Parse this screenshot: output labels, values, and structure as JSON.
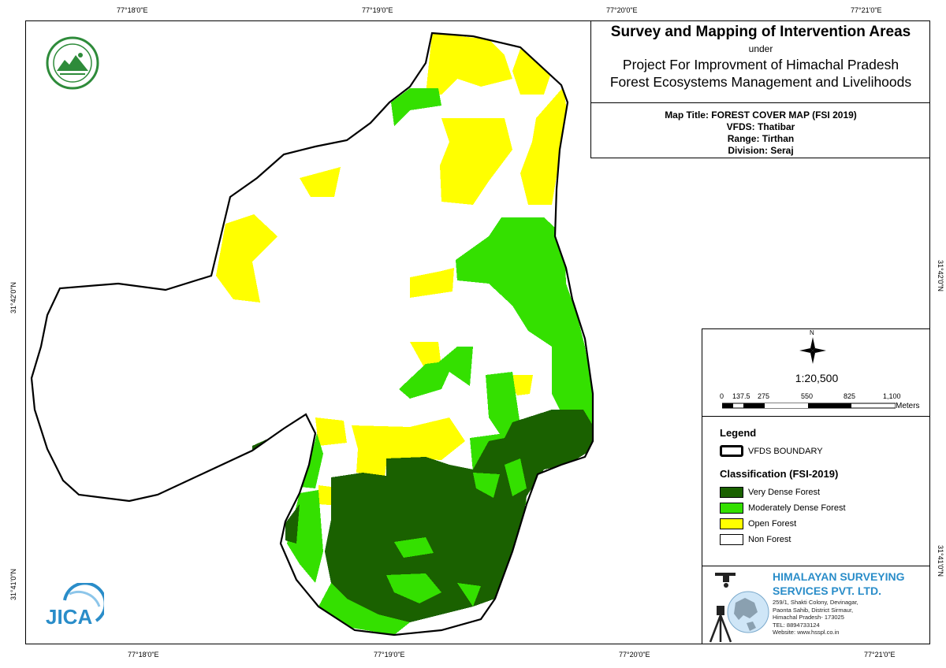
{
  "coords": {
    "top": [
      "77°18'0\"E",
      "77°19'0\"E",
      "77°20'0\"E",
      "77°21'0\"E"
    ],
    "bottom": [
      "77°18'0\"E",
      "77°19'0\"E",
      "77°20'0\"E",
      "77°21'0\"E"
    ],
    "left": [
      "31°42'0\"N",
      "31°41'0\"N"
    ],
    "right": [
      "31°42'0\"N",
      "31°41'0\"N"
    ]
  },
  "title": {
    "main": "Survey and Mapping of Intervention Areas",
    "under": "under",
    "project_line1": "Project For Improvment of Himachal Pradesh",
    "project_line2": "Forest Ecosystems Management and Livelihoods",
    "map_title": "Map Title: FOREST COVER MAP (FSI 2019)",
    "vfds": "VFDS: Thatibar",
    "range": "Range: Tirthan",
    "division": "Division: Seraj"
  },
  "north_label": "N",
  "scale": {
    "ratio": "1:20,500",
    "ticks": [
      "0",
      "137.5",
      "275",
      "550",
      "825",
      "1,100"
    ],
    "unit": "Meters"
  },
  "legend": {
    "heading": "Legend",
    "boundary": "VFDS BOUNDARY",
    "class_heading": "Classification (FSI-2019)",
    "items": [
      {
        "label": "Very Dense Forest",
        "color": "#1a6100"
      },
      {
        "label": "Moderately Dense Forest",
        "color": "#34e000"
      },
      {
        "label": "Open Forest",
        "color": "#ffff00"
      },
      {
        "label": "Non Forest",
        "color": "#ffffff"
      }
    ]
  },
  "company": {
    "name_line1": "HIMALAYAN SURVEYING",
    "name_line2": "SERVICES PVT. LTD.",
    "address": [
      "259/1, Shakti Colony, Devinagar,",
      "Paonta Sahib, District Sirmaur,",
      "Himachal Pradesh- 173025",
      "TEL: 8894733124",
      "Website: www.hsspl.co.in"
    ]
  },
  "jica_logo": "JICA",
  "colors": {
    "very_dense": "#1a6100",
    "mod_dense": "#34e000",
    "open": "#ffff00",
    "brand_blue": "#2a8dc9"
  }
}
